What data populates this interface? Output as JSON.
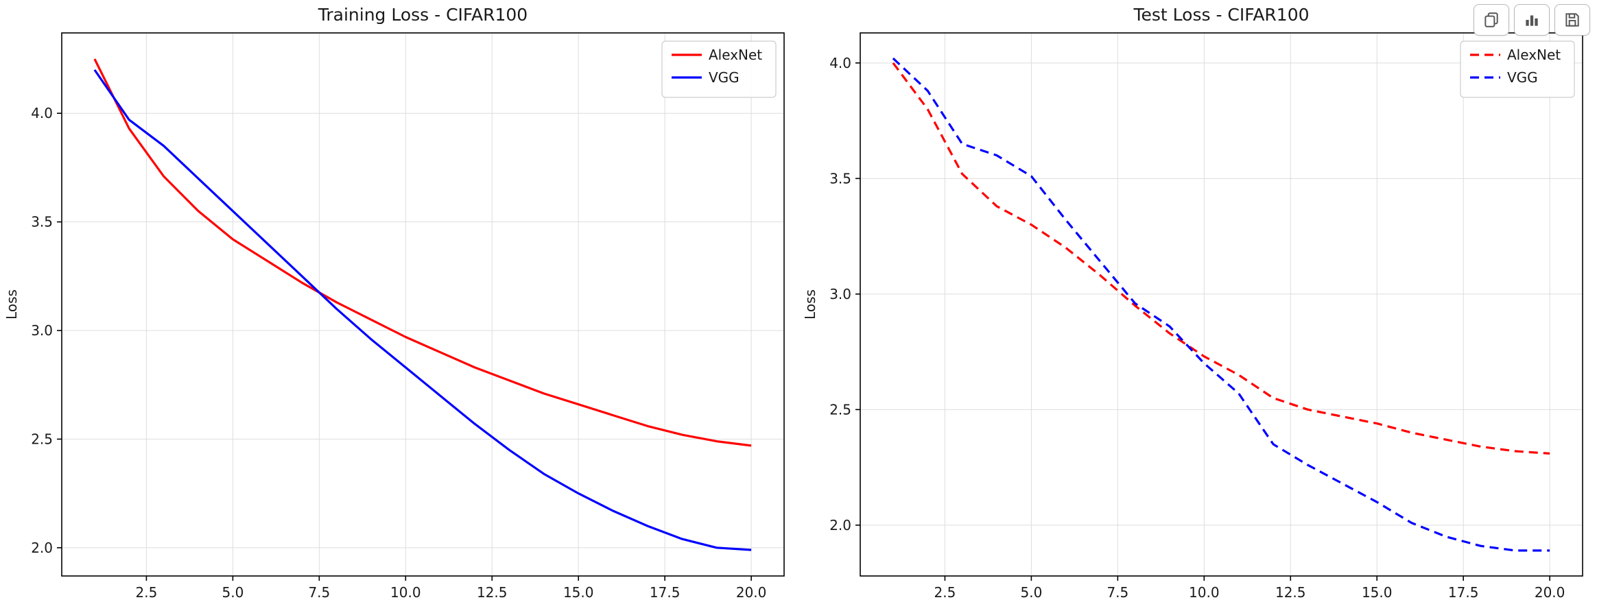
{
  "toolbar": {
    "buttons": [
      {
        "icon": "copy-icon",
        "name": "copy"
      },
      {
        "icon": "bar-chart-icon",
        "name": "chart"
      },
      {
        "icon": "save-icon",
        "name": "save"
      }
    ]
  },
  "chart_data": [
    {
      "type": "line",
      "title": "Training Loss - CIFAR100",
      "xlabel": "",
      "ylabel": "Loss",
      "grid": true,
      "legend_position": "upper right",
      "xlim": [
        0.05,
        20.95
      ],
      "ylim": [
        1.87,
        4.37
      ],
      "xticks": [
        2.5,
        5.0,
        7.5,
        10.0,
        12.5,
        15.0,
        17.5,
        20.0
      ],
      "yticks": [
        2.0,
        2.5,
        3.0,
        3.5,
        4.0
      ],
      "x": [
        1,
        2,
        3,
        4,
        5,
        6,
        7,
        8,
        9,
        10,
        11,
        12,
        13,
        14,
        15,
        16,
        17,
        18,
        19,
        20
      ],
      "series": [
        {
          "name": "AlexNet",
          "color": "#ff0000",
          "dash": "solid",
          "values": [
            4.25,
            3.93,
            3.71,
            3.55,
            3.42,
            3.32,
            3.22,
            3.13,
            3.05,
            2.97,
            2.9,
            2.83,
            2.77,
            2.71,
            2.66,
            2.61,
            2.56,
            2.52,
            2.49,
            2.47
          ]
        },
        {
          "name": "VGG",
          "color": "#0000ff",
          "dash": "solid",
          "values": [
            4.2,
            3.97,
            3.85,
            3.7,
            3.55,
            3.4,
            3.25,
            3.1,
            2.96,
            2.83,
            2.7,
            2.57,
            2.45,
            2.34,
            2.25,
            2.17,
            2.1,
            2.04,
            2.0,
            1.99
          ]
        }
      ]
    },
    {
      "type": "line",
      "title": "Test Loss - CIFAR100",
      "xlabel": "",
      "ylabel": "Loss",
      "grid": true,
      "legend_position": "upper right",
      "xlim": [
        0.05,
        20.95
      ],
      "ylim": [
        1.78,
        4.13
      ],
      "xticks": [
        2.5,
        5.0,
        7.5,
        10.0,
        12.5,
        15.0,
        17.5,
        20.0
      ],
      "yticks": [
        2.0,
        2.5,
        3.0,
        3.5,
        4.0
      ],
      "x": [
        1,
        2,
        3,
        4,
        5,
        6,
        7,
        8,
        9,
        10,
        11,
        12,
        13,
        14,
        15,
        16,
        17,
        18,
        19,
        20
      ],
      "series": [
        {
          "name": "AlexNet",
          "color": "#ff0000",
          "dash": "dashed",
          "values": [
            4.0,
            3.8,
            3.52,
            3.38,
            3.3,
            3.2,
            3.08,
            2.95,
            2.83,
            2.73,
            2.65,
            2.55,
            2.5,
            2.47,
            2.44,
            2.4,
            2.37,
            2.34,
            2.32,
            2.31
          ]
        },
        {
          "name": "VGG",
          "color": "#0000ff",
          "dash": "dashed",
          "values": [
            4.02,
            3.88,
            3.65,
            3.6,
            3.51,
            3.32,
            3.14,
            2.96,
            2.86,
            2.7,
            2.57,
            2.35,
            2.26,
            2.18,
            2.1,
            2.01,
            1.95,
            1.91,
            1.89,
            1.89
          ]
        }
      ]
    }
  ]
}
